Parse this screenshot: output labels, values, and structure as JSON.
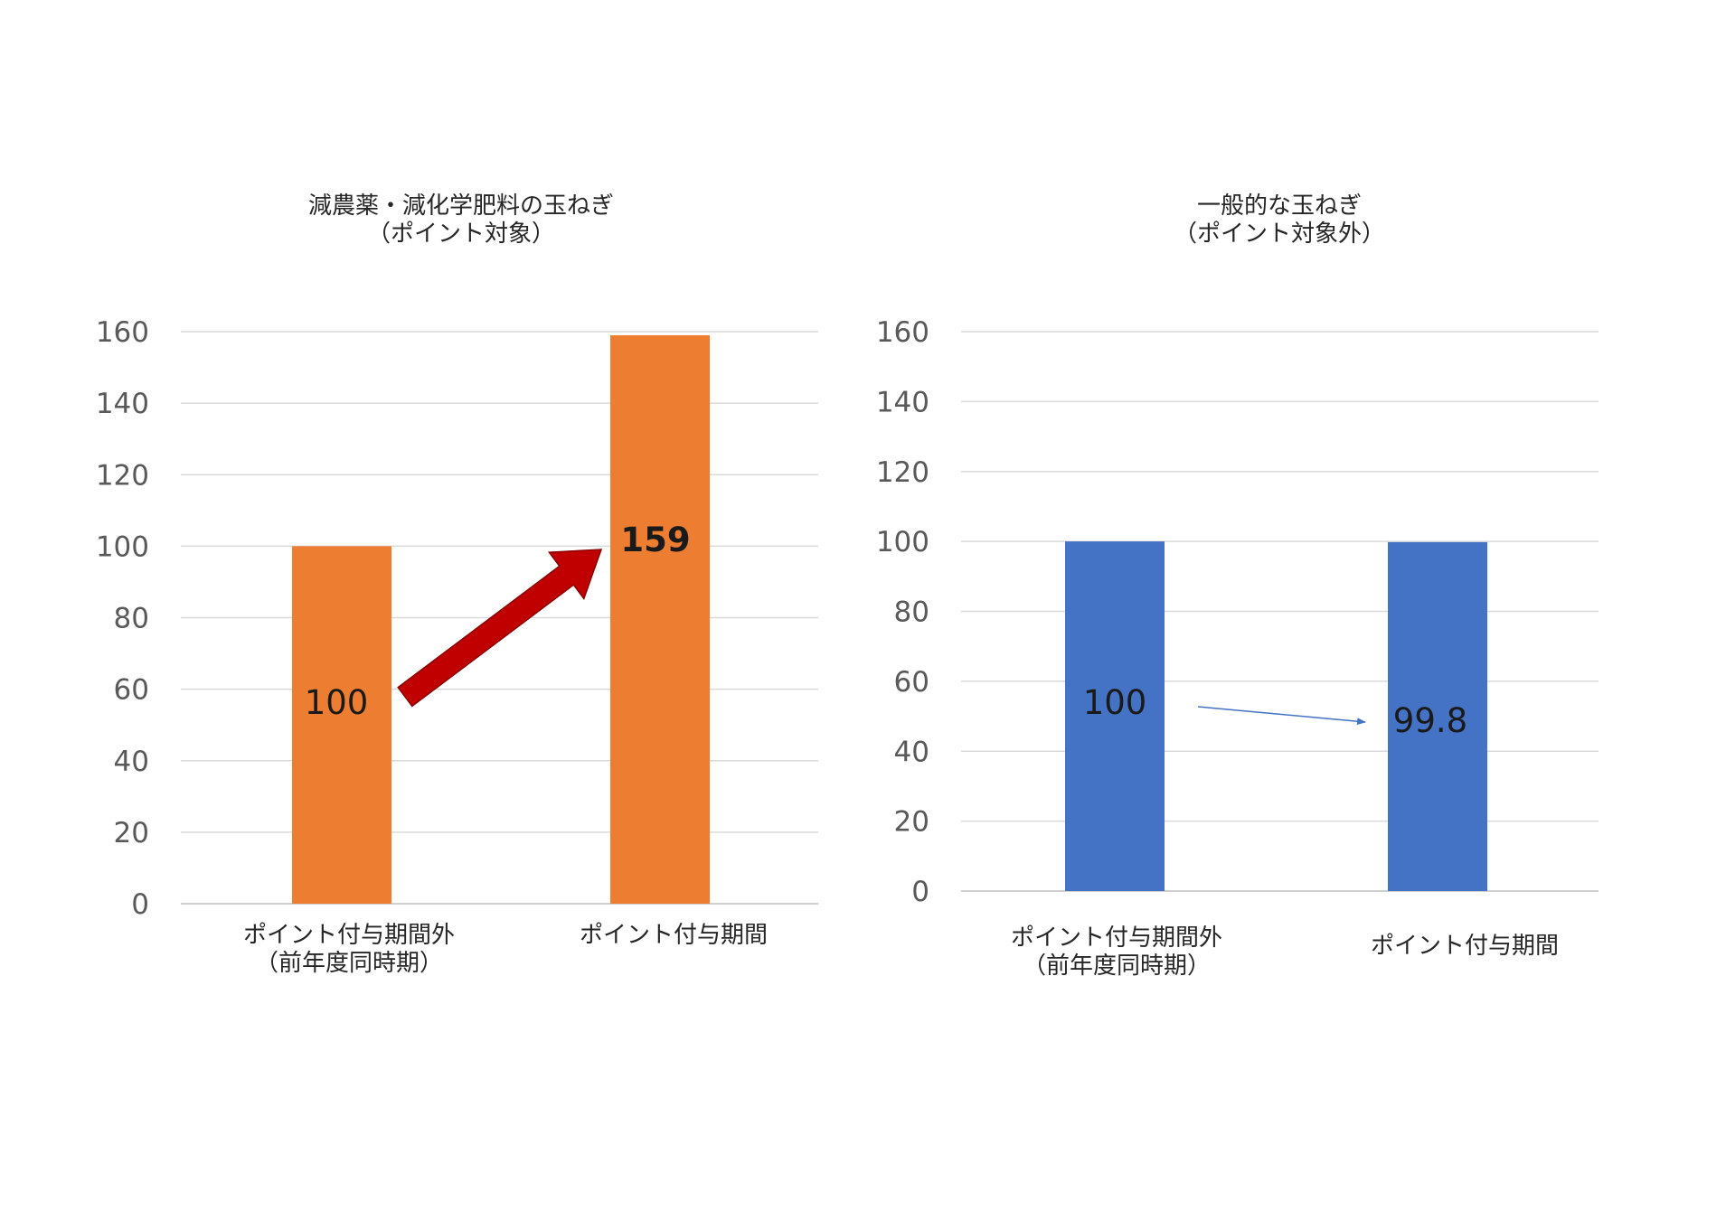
{
  "chart_data": [
    {
      "type": "bar",
      "title_lines": [
        "減農薬・減化学肥料の玉ねぎ",
        "（ポイント対象）"
      ],
      "categories": [
        [
          "ポイント付与期間外",
          "（前年度同時期）"
        ],
        [
          "ポイント付与期間"
        ]
      ],
      "values": [
        100,
        159
      ],
      "data_labels": [
        "100",
        "159"
      ],
      "ylim": [
        0,
        160
      ],
      "yticks": [
        "0",
        "20",
        "40",
        "60",
        "80",
        "100",
        "120",
        "140",
        "160"
      ],
      "grid": true,
      "legend": "none",
      "bar_color": "#ED7D31",
      "arrow_color": "#C00000"
    },
    {
      "type": "bar",
      "title_lines": [
        "一般的な玉ねぎ",
        "（ポイント対象外）"
      ],
      "categories": [
        [
          "ポイント付与期間外",
          "（前年度同時期）"
        ],
        [
          "ポイント付与期間"
        ]
      ],
      "values": [
        100,
        99.8
      ],
      "data_labels": [
        "100",
        "99.8"
      ],
      "ylim": [
        0,
        160
      ],
      "yticks": [
        "0",
        "20",
        "40",
        "60",
        "80",
        "100",
        "120",
        "140",
        "160"
      ],
      "grid": true,
      "legend": "none",
      "bar_color": "#4472C4",
      "arrow_color": "#4472C4"
    }
  ]
}
